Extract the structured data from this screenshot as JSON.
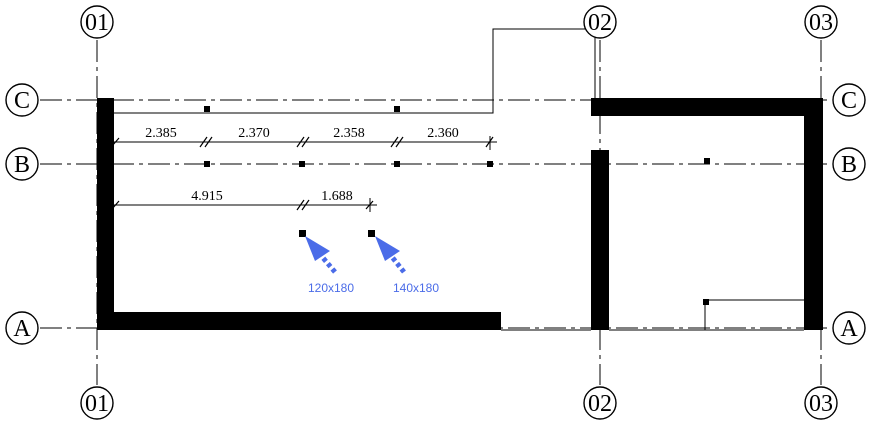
{
  "grid_columns": [
    {
      "label": "01"
    },
    {
      "label": "02"
    },
    {
      "label": "03"
    }
  ],
  "grid_rows": [
    {
      "label": "C"
    },
    {
      "label": "B"
    },
    {
      "label": "A"
    }
  ],
  "dimensions_row1": [
    "2.385",
    "2.370",
    "2.358",
    "2.360"
  ],
  "dimensions_row2": [
    "4.915",
    "1.688"
  ],
  "tags": [
    {
      "label": "120x180"
    },
    {
      "label": "140x180"
    }
  ],
  "colors": {
    "lines": "#000000",
    "tag": "#4b6ce8",
    "background": "#ffffff"
  }
}
